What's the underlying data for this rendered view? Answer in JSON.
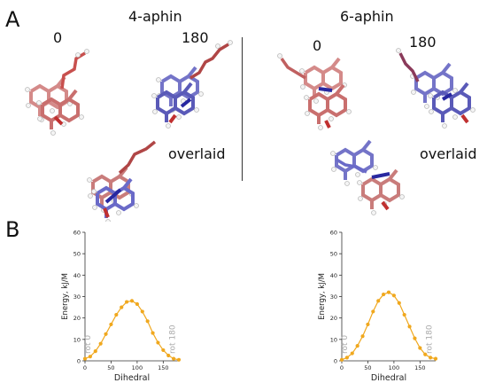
{
  "panel_a": {
    "letter": "A",
    "groups": [
      {
        "title": "4-aphin",
        "label_0": "0",
        "label_180": "180",
        "label_overlaid": "overlaid"
      },
      {
        "title": "6-aphin",
        "label_0": "0",
        "label_180": "180",
        "label_overlaid": "overlaid"
      }
    ]
  },
  "panel_b": {
    "letter": "B"
  },
  "colors": {
    "red_model": "#c9706f",
    "blue_model": "#6666c4",
    "curve": "#f0a81e",
    "marker": "#f0a81e"
  },
  "chart_data": [
    {
      "type": "line",
      "xlabel": "Dihedral",
      "ylabel": "Energy, kJ/M",
      "xlim": [
        0,
        180
      ],
      "ylim": [
        0,
        60
      ],
      "xticks": [
        0,
        50,
        100,
        150
      ],
      "yticks": [
        0,
        10,
        20,
        30,
        40,
        50,
        60
      ],
      "annotations": [
        "rot 0",
        "rot 180"
      ],
      "x": [
        0,
        10,
        20,
        30,
        40,
        50,
        60,
        70,
        80,
        90,
        100,
        110,
        120,
        130,
        140,
        150,
        160,
        170,
        180
      ],
      "y": [
        1,
        2,
        4.5,
        8,
        12.5,
        17,
        21.5,
        25,
        27.5,
        28,
        26.5,
        23,
        18.5,
        13,
        8.5,
        5,
        2.5,
        1,
        0.5
      ]
    },
    {
      "type": "line",
      "xlabel": "Dihedral",
      "ylabel": "Energy, kJ/M",
      "xlim": [
        0,
        180
      ],
      "ylim": [
        0,
        60
      ],
      "xticks": [
        0,
        50,
        100,
        150
      ],
      "yticks": [
        0,
        10,
        20,
        30,
        40,
        50,
        60
      ],
      "annotations": [
        "rot 0",
        "rot 180"
      ],
      "x": [
        0,
        10,
        20,
        30,
        40,
        50,
        60,
        70,
        80,
        90,
        100,
        110,
        120,
        130,
        140,
        150,
        160,
        170,
        180
      ],
      "y": [
        0.5,
        1.5,
        3.5,
        7,
        11.5,
        17,
        23,
        28,
        31,
        32,
        30.5,
        27,
        21.5,
        16,
        10.5,
        6,
        3,
        1.5,
        1
      ]
    }
  ]
}
